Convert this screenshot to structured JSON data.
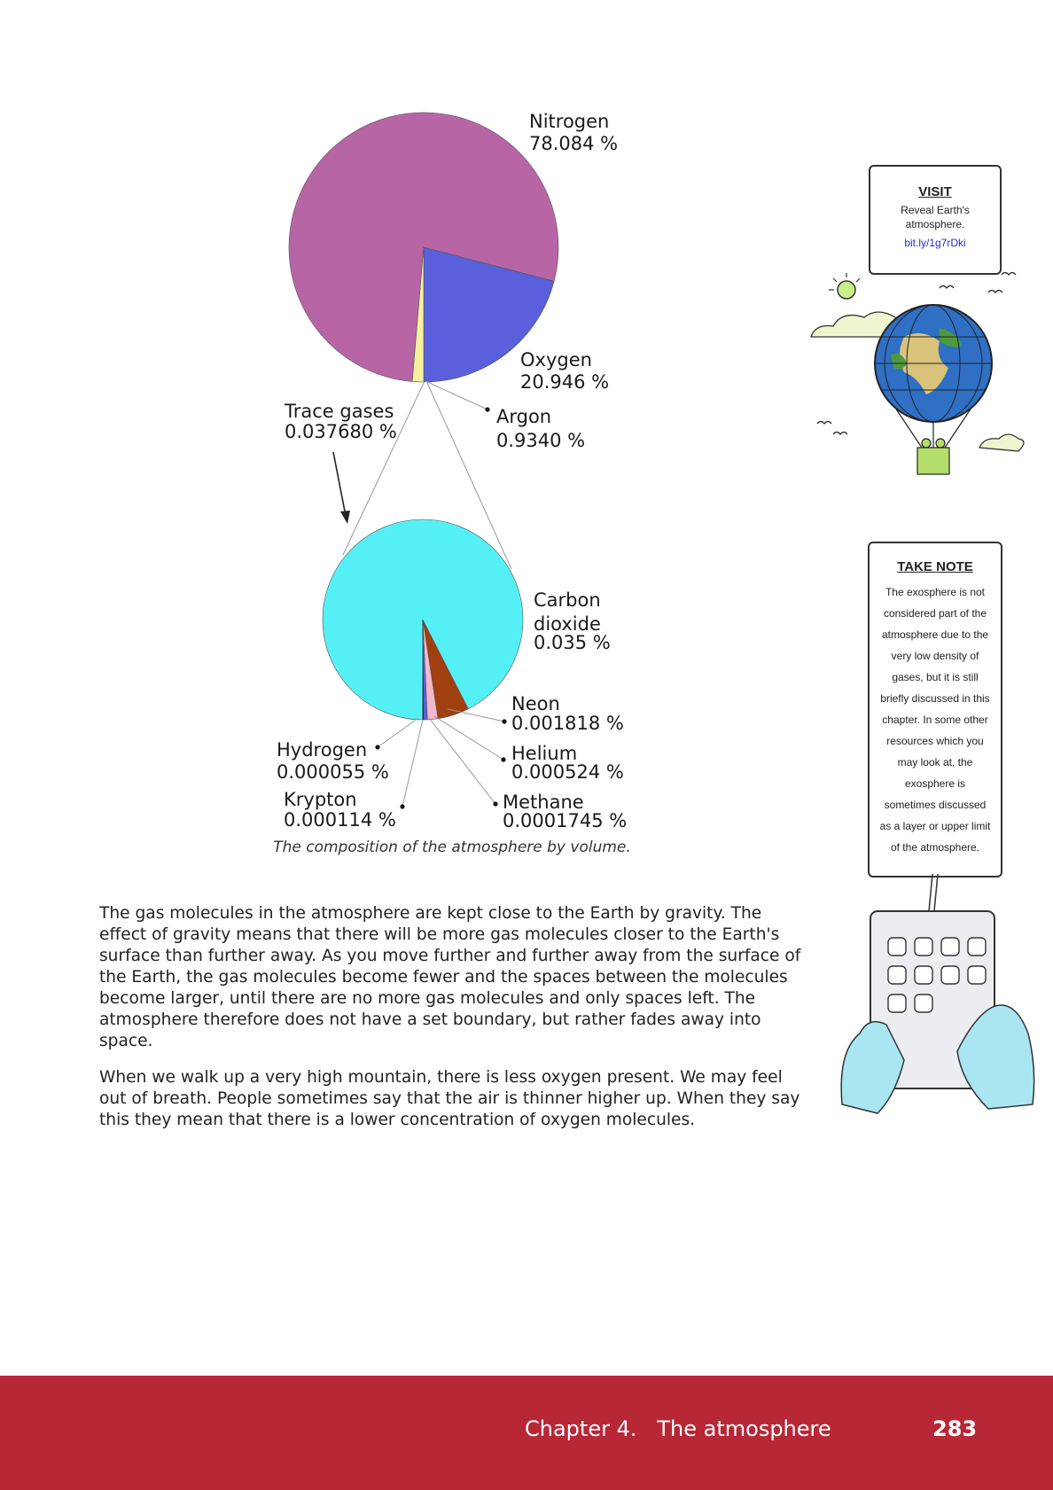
{
  "chart_data": [
    {
      "type": "pie",
      "slices": [
        {
          "label": "Nitrogen",
          "value": 78.084,
          "value_text": "78.084 %",
          "color": "#b865a6"
        },
        {
          "label": "Oxygen",
          "value": 20.946,
          "value_text": "20.946 %",
          "color": "#5a5fdb"
        },
        {
          "label": "Argon",
          "value": 0.934,
          "value_text": "0.9340 %",
          "color": "#f5f0a0"
        },
        {
          "label": "Trace gases",
          "value": 0.03768,
          "value_text": "0.037680 %",
          "color": "#55f0f5"
        }
      ]
    },
    {
      "type": "pie",
      "slices": [
        {
          "label": "Carbon dioxide",
          "value": 0.035,
          "value_text": "0.035 %",
          "color": "#55f0f5"
        },
        {
          "label": "Neon",
          "value": 0.001818,
          "value_text": "0.001818 %",
          "color": "#a04010"
        },
        {
          "label": "Helium",
          "value": 0.000524,
          "value_text": "0.000524 %",
          "color": "#f5b8c8"
        },
        {
          "label": "Methane",
          "value": 0.0001745,
          "value_text": "0.0001745 %",
          "color": "#5a5fdb"
        },
        {
          "label": "Krypton",
          "value": 0.000114,
          "value_text": "0.000114 %",
          "color": "#222222"
        },
        {
          "label": "Hydrogen",
          "value": 5.5e-05,
          "value_text": "0.000055 %",
          "color": "#1a1a1a"
        }
      ]
    }
  ],
  "caption": "The composition of the atmosphere by volume.",
  "paragraphs": [
    "The gas molecules in the atmosphere are kept close to the Earth by gravity. The effect of gravity means that there will be more gas molecules closer to the Earth's surface than further away. As you move further and further away from the surface of the Earth, the gas molecules become fewer and the spaces between the molecules become larger, until there are no more gas molecules and only spaces left. The atmosphere therefore does not have a set boundary, but rather fades away into space.",
    "When we walk up a very high mountain, there is less oxygen present. We may feel out of breath. People sometimes say that the air is thinner higher up. When they say this they mean that there is a lower concentration of oxygen molecules."
  ],
  "visit": {
    "title": "VISIT",
    "text": "Reveal Earth's atmosphere.",
    "link": "bit.ly/1g7rDki"
  },
  "take_note": {
    "title": "TAKE NOTE",
    "text": "The exosphere is not considered part of the atmosphere due to the very low density of gases, but it is still briefly discussed in this chapter. In some other resources which you may look at, the exosphere is sometimes discussed as a layer or upper limit of the atmosphere."
  },
  "footer": {
    "chapter": "Chapter 4.   The atmosphere",
    "page": "283"
  }
}
